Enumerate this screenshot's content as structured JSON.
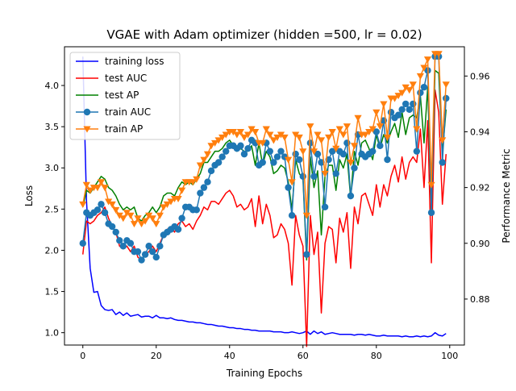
{
  "colors": {
    "training_loss": "#0000ff",
    "test_auc": "#ff0000",
    "test_ap": "#008000",
    "train_auc": "#1f77b4",
    "train_ap": "#ff7f0e"
  },
  "chart_data": {
    "type": "line",
    "title": "VGAE with Adam optimizer (hidden =500, lr = 0.02)",
    "xlabel": "Training Epochs",
    "ylabel": "Loss",
    "y2label": "Performance Metric",
    "xlim": [
      -5,
      104
    ],
    "ylim": [
      0.85,
      4.47
    ],
    "y2lim": [
      0.8635,
      0.9705
    ],
    "xticks": [
      0,
      20,
      40,
      60,
      80,
      100
    ],
    "yticks": [
      1.0,
      1.5,
      2.0,
      2.5,
      3.0,
      3.5,
      4.0
    ],
    "y2ticks": [
      0.88,
      0.9,
      0.92,
      0.94,
      0.96
    ],
    "grid": false,
    "legend_position": "top-left",
    "series": [
      {
        "name": "training loss",
        "axis": "left",
        "marker": "none",
        "values": [
          4.35,
          2.6,
          1.78,
          1.49,
          1.5,
          1.33,
          1.28,
          1.27,
          1.28,
          1.22,
          1.25,
          1.21,
          1.24,
          1.2,
          1.21,
          1.22,
          1.19,
          1.2,
          1.2,
          1.18,
          1.21,
          1.18,
          1.18,
          1.17,
          1.18,
          1.16,
          1.15,
          1.15,
          1.14,
          1.13,
          1.13,
          1.12,
          1.12,
          1.11,
          1.1,
          1.1,
          1.09,
          1.08,
          1.08,
          1.07,
          1.06,
          1.06,
          1.05,
          1.05,
          1.04,
          1.04,
          1.03,
          1.03,
          1.02,
          1.02,
          1.02,
          1.02,
          1.01,
          1.01,
          1.01,
          1.0,
          1.0,
          1.01,
          1.0,
          0.99,
          1.0,
          1.02,
          0.98,
          1.02,
          0.99,
          1.01,
          0.98,
          0.99,
          1.0,
          0.99,
          0.98,
          0.98,
          0.98,
          0.98,
          0.97,
          0.98,
          0.98,
          0.97,
          0.98,
          0.97,
          0.96,
          0.96,
          0.97,
          0.96,
          0.96,
          0.96,
          0.96,
          0.95,
          0.96,
          0.95,
          0.95,
          0.96,
          0.95,
          0.96,
          0.95,
          0.96,
          1.0,
          0.97,
          0.96,
          0.99
        ]
      },
      {
        "name": "test AUC",
        "axis": "right",
        "marker": "none",
        "values": [
          0.896,
          0.908,
          0.907,
          0.908,
          0.91,
          0.911,
          0.913,
          0.909,
          0.906,
          0.904,
          0.899,
          0.898,
          0.899,
          0.897,
          0.899,
          0.895,
          0.894,
          0.896,
          0.897,
          0.899,
          0.897,
          0.9,
          0.903,
          0.905,
          0.906,
          0.904,
          0.907,
          0.908,
          0.906,
          0.907,
          0.905,
          0.908,
          0.91,
          0.913,
          0.912,
          0.915,
          0.915,
          0.914,
          0.916,
          0.918,
          0.919,
          0.917,
          0.913,
          0.914,
          0.912,
          0.913,
          0.916,
          0.906,
          0.917,
          0.907,
          0.914,
          0.91,
          0.902,
          0.903,
          0.907,
          0.905,
          0.9,
          0.885,
          0.91,
          0.903,
          0.899,
          0.863,
          0.91,
          0.896,
          0.904,
          0.875,
          0.9,
          0.906,
          0.905,
          0.893,
          0.909,
          0.904,
          0.911,
          0.891,
          0.913,
          0.907,
          0.917,
          0.918,
          0.914,
          0.91,
          0.921,
          0.913,
          0.921,
          0.917,
          0.924,
          0.928,
          0.922,
          0.931,
          0.923,
          0.929,
          0.931,
          0.929,
          0.941,
          0.92,
          0.944,
          0.893,
          0.955,
          0.947,
          0.914,
          0.932
        ]
      },
      {
        "name": "test AP",
        "axis": "right",
        "marker": "none",
        "values": [
          0.913,
          0.919,
          0.918,
          0.92,
          0.922,
          0.924,
          0.923,
          0.92,
          0.919,
          0.917,
          0.914,
          0.912,
          0.913,
          0.912,
          0.913,
          0.909,
          0.908,
          0.91,
          0.911,
          0.913,
          0.911,
          0.913,
          0.917,
          0.918,
          0.918,
          0.917,
          0.92,
          0.922,
          0.921,
          0.922,
          0.921,
          0.923,
          0.925,
          0.929,
          0.929,
          0.931,
          0.933,
          0.933,
          0.934,
          0.936,
          0.937,
          0.935,
          0.933,
          0.934,
          0.933,
          0.933,
          0.935,
          0.928,
          0.936,
          0.928,
          0.933,
          0.931,
          0.925,
          0.926,
          0.928,
          0.927,
          0.922,
          0.912,
          0.93,
          0.925,
          0.923,
          0.894,
          0.931,
          0.92,
          0.926,
          0.903,
          0.924,
          0.928,
          0.928,
          0.919,
          0.93,
          0.927,
          0.932,
          0.916,
          0.933,
          0.928,
          0.936,
          0.937,
          0.934,
          0.93,
          0.939,
          0.934,
          0.939,
          0.936,
          0.94,
          0.943,
          0.938,
          0.947,
          0.939,
          0.945,
          0.946,
          0.945,
          0.953,
          0.936,
          0.956,
          0.912,
          0.962,
          0.961,
          0.932,
          0.948
        ]
      },
      {
        "name": "train AUC",
        "axis": "right",
        "marker": "circle",
        "values": [
          0.9,
          0.911,
          0.91,
          0.911,
          0.912,
          0.914,
          0.911,
          0.907,
          0.906,
          0.904,
          0.901,
          0.899,
          0.901,
          0.9,
          0.897,
          0.897,
          0.894,
          0.896,
          0.899,
          0.897,
          0.895,
          0.899,
          0.903,
          0.904,
          0.905,
          0.906,
          0.905,
          0.909,
          0.913,
          0.913,
          0.912,
          0.912,
          0.918,
          0.92,
          0.922,
          0.926,
          0.928,
          0.929,
          0.931,
          0.933,
          0.935,
          0.935,
          0.934,
          0.935,
          0.932,
          0.934,
          0.937,
          0.936,
          0.928,
          0.929,
          0.936,
          0.933,
          0.929,
          0.931,
          0.933,
          0.931,
          0.92,
          0.91,
          0.932,
          0.93,
          0.924,
          0.896,
          0.936,
          0.924,
          0.932,
          0.929,
          0.913,
          0.93,
          0.933,
          0.925,
          0.933,
          0.932,
          0.936,
          0.917,
          0.927,
          0.939,
          0.932,
          0.931,
          0.932,
          0.933,
          0.94,
          0.935,
          0.944,
          0.93,
          0.947,
          0.945,
          0.946,
          0.948,
          0.95,
          0.948,
          0.95,
          0.933,
          0.954,
          0.956,
          0.962,
          0.911,
          0.967,
          0.967,
          0.929,
          0.952
        ]
      },
      {
        "name": "train AP",
        "axis": "right",
        "marker": "triangle_down",
        "values": [
          0.914,
          0.921,
          0.919,
          0.92,
          0.92,
          0.922,
          0.92,
          0.915,
          0.914,
          0.912,
          0.91,
          0.909,
          0.911,
          0.91,
          0.907,
          0.909,
          0.907,
          0.908,
          0.91,
          0.909,
          0.907,
          0.91,
          0.913,
          0.914,
          0.915,
          0.916,
          0.916,
          0.919,
          0.922,
          0.922,
          0.922,
          0.923,
          0.928,
          0.93,
          0.932,
          0.935,
          0.936,
          0.937,
          0.938,
          0.939,
          0.94,
          0.94,
          0.939,
          0.94,
          0.938,
          0.939,
          0.941,
          0.94,
          0.936,
          0.936,
          0.941,
          0.939,
          0.937,
          0.938,
          0.939,
          0.938,
          0.93,
          0.922,
          0.939,
          0.938,
          0.933,
          0.91,
          0.942,
          0.933,
          0.939,
          0.937,
          0.925,
          0.938,
          0.94,
          0.934,
          0.941,
          0.939,
          0.942,
          0.929,
          0.935,
          0.945,
          0.939,
          0.939,
          0.94,
          0.941,
          0.947,
          0.942,
          0.95,
          0.938,
          0.952,
          0.952,
          0.953,
          0.954,
          0.956,
          0.955,
          0.957,
          0.941,
          0.96,
          0.963,
          0.966,
          0.921,
          0.968,
          0.968,
          0.937,
          0.957
        ]
      }
    ]
  }
}
